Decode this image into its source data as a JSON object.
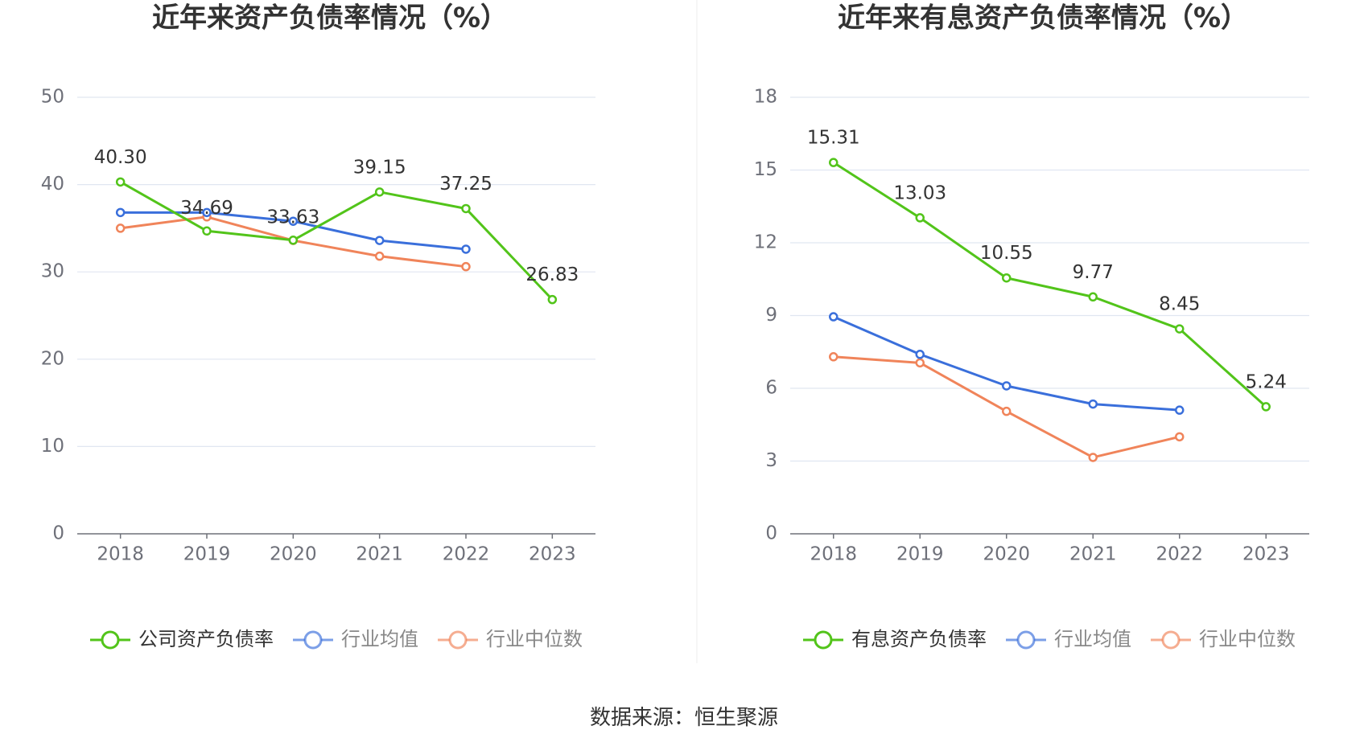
{
  "footer": {
    "source": "数据来源：恒生聚源"
  },
  "chart_data": [
    {
      "type": "line",
      "title": "近年来资产负债率情况（%）",
      "categories": [
        "2018",
        "2019",
        "2020",
        "2021",
        "2022",
        "2023"
      ],
      "ylim": [
        0,
        50
      ],
      "yticks": [
        "0",
        "10",
        "20",
        "30",
        "40",
        "50"
      ],
      "grid": true,
      "legend_position": "bottom",
      "series": [
        {
          "name": "公司资产负债率",
          "color": "#52c41a",
          "values": [
            40.3,
            34.69,
            33.63,
            39.15,
            37.25,
            26.83
          ],
          "labels": [
            "40.30",
            "34.69",
            "33.63",
            "39.15",
            "37.25",
            "26.83"
          ]
        },
        {
          "name": "行业均值",
          "color": "#3a6fdb",
          "values": [
            36.8,
            36.8,
            35.8,
            33.6,
            32.6,
            null
          ]
        },
        {
          "name": "行业中位数",
          "color": "#f0845a",
          "values": [
            35.0,
            36.3,
            33.6,
            31.8,
            30.6,
            null
          ]
        }
      ]
    },
    {
      "type": "line",
      "title": "近年来有息资产负债率情况（%）",
      "categories": [
        "2018",
        "2019",
        "2020",
        "2021",
        "2022",
        "2023"
      ],
      "ylim": [
        0,
        18
      ],
      "yticks": [
        "0",
        "3",
        "6",
        "9",
        "12",
        "15",
        "18"
      ],
      "grid": true,
      "legend_position": "bottom",
      "series": [
        {
          "name": "有息资产负债率",
          "color": "#52c41a",
          "values": [
            15.31,
            13.03,
            10.55,
            9.77,
            8.45,
            5.24
          ],
          "labels": [
            "15.31",
            "13.03",
            "10.55",
            "9.77",
            "8.45",
            "5.24"
          ]
        },
        {
          "name": "行业均值",
          "color": "#3a6fdb",
          "values": [
            8.95,
            7.4,
            6.1,
            5.35,
            5.1,
            null
          ]
        },
        {
          "name": "行业中位数",
          "color": "#f0845a",
          "values": [
            7.3,
            7.05,
            5.05,
            3.15,
            4.0,
            null
          ]
        }
      ]
    }
  ]
}
